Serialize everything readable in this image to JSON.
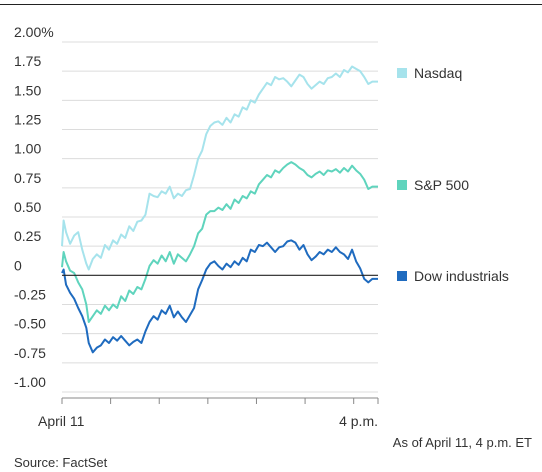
{
  "chart_data": {
    "type": "line",
    "title": "",
    "xlabel": "",
    "ylabel": "",
    "ylim": [
      -1.0,
      2.0
    ],
    "y_ticks": [
      2.0,
      1.75,
      1.5,
      1.25,
      1.0,
      0.75,
      0.5,
      0.25,
      0,
      -0.25,
      -0.5,
      -0.75,
      -1.0
    ],
    "y_tick_labels": [
      "2.00%",
      "1.75",
      "1.50",
      "1.25",
      "1.00",
      "0.75",
      "0.50",
      "0.25",
      "0",
      "-0.25",
      "-0.50",
      "-0.75",
      "-1.00"
    ],
    "x_range": [
      "9:30 a.m.",
      "4 p.m."
    ],
    "x_tick_labels": [
      "April 11",
      "4 p.m."
    ],
    "grid": true,
    "legend_placement": "right, at each line's end",
    "series": [
      {
        "name": "Nasdaq",
        "color": "#a6e3ec",
        "points": [
          [
            "9:30",
            0.25
          ],
          [
            "9:32",
            0.47
          ],
          [
            "9:35",
            0.37
          ],
          [
            "9:40",
            0.27
          ],
          [
            "9:45",
            0.34
          ],
          [
            "9:50",
            0.37
          ],
          [
            "9:55",
            0.22
          ],
          [
            "10:00",
            0.1
          ],
          [
            "10:03",
            0.05
          ],
          [
            "10:08",
            0.14
          ],
          [
            "10:13",
            0.18
          ],
          [
            "10:18",
            0.15
          ],
          [
            "10:23",
            0.26
          ],
          [
            "10:28",
            0.22
          ],
          [
            "10:33",
            0.3
          ],
          [
            "10:38",
            0.27
          ],
          [
            "10:43",
            0.35
          ],
          [
            "10:48",
            0.32
          ],
          [
            "10:53",
            0.42
          ],
          [
            "10:58",
            0.38
          ],
          [
            "11:03",
            0.46
          ],
          [
            "11:08",
            0.47
          ],
          [
            "11:13",
            0.52
          ],
          [
            "11:18",
            0.7
          ],
          [
            "11:23",
            0.68
          ],
          [
            "11:28",
            0.67
          ],
          [
            "11:33",
            0.72
          ],
          [
            "11:38",
            0.7
          ],
          [
            "11:43",
            0.76
          ],
          [
            "11:48",
            0.66
          ],
          [
            "11:53",
            0.7
          ],
          [
            "11:58",
            0.68
          ],
          [
            "12:03",
            0.73
          ],
          [
            "12:08",
            0.74
          ],
          [
            "12:13",
            0.86
          ],
          [
            "12:18",
            1.0
          ],
          [
            "12:23",
            1.07
          ],
          [
            "12:28",
            1.21
          ],
          [
            "12:33",
            1.28
          ],
          [
            "12:38",
            1.31
          ],
          [
            "12:43",
            1.32
          ],
          [
            "12:48",
            1.29
          ],
          [
            "12:53",
            1.35
          ],
          [
            "12:58",
            1.31
          ],
          [
            "13:03",
            1.38
          ],
          [
            "13:08",
            1.36
          ],
          [
            "13:13",
            1.44
          ],
          [
            "13:18",
            1.42
          ],
          [
            "13:23",
            1.5
          ],
          [
            "13:28",
            1.48
          ],
          [
            "13:33",
            1.55
          ],
          [
            "13:38",
            1.6
          ],
          [
            "13:43",
            1.65
          ],
          [
            "13:48",
            1.63
          ],
          [
            "13:53",
            1.7
          ],
          [
            "13:58",
            1.68
          ],
          [
            "14:03",
            1.69
          ],
          [
            "14:08",
            1.66
          ],
          [
            "14:13",
            1.62
          ],
          [
            "14:18",
            1.67
          ],
          [
            "14:23",
            1.72
          ],
          [
            "14:28",
            1.7
          ],
          [
            "14:33",
            1.64
          ],
          [
            "14:38",
            1.6
          ],
          [
            "14:43",
            1.63
          ],
          [
            "14:48",
            1.66
          ],
          [
            "14:53",
            1.64
          ],
          [
            "14:58",
            1.69
          ],
          [
            "15:03",
            1.7
          ],
          [
            "15:08",
            1.73
          ],
          [
            "15:13",
            1.7
          ],
          [
            "15:18",
            1.76
          ],
          [
            "15:23",
            1.74
          ],
          [
            "15:28",
            1.79
          ],
          [
            "15:33",
            1.77
          ],
          [
            "15:38",
            1.75
          ],
          [
            "15:43",
            1.7
          ],
          [
            "15:48",
            1.64
          ],
          [
            "15:53",
            1.66
          ],
          [
            "16:00",
            1.66
          ]
        ]
      },
      {
        "name": "S&P 500",
        "color": "#5fd4bd",
        "points": [
          [
            "9:30",
            0.07
          ],
          [
            "9:32",
            0.2
          ],
          [
            "9:35",
            0.12
          ],
          [
            "9:40",
            0.04
          ],
          [
            "9:45",
            0.02
          ],
          [
            "9:50",
            -0.06
          ],
          [
            "9:55",
            -0.12
          ],
          [
            "10:00",
            -0.25
          ],
          [
            "10:03",
            -0.4
          ],
          [
            "10:08",
            -0.35
          ],
          [
            "10:13",
            -0.3
          ],
          [
            "10:18",
            -0.33
          ],
          [
            "10:23",
            -0.26
          ],
          [
            "10:28",
            -0.3
          ],
          [
            "10:33",
            -0.25
          ],
          [
            "10:38",
            -0.28
          ],
          [
            "10:43",
            -0.18
          ],
          [
            "10:48",
            -0.22
          ],
          [
            "10:53",
            -0.13
          ],
          [
            "10:58",
            -0.16
          ],
          [
            "11:03",
            -0.1
          ],
          [
            "11:08",
            -0.12
          ],
          [
            "11:13",
            -0.03
          ],
          [
            "11:18",
            0.08
          ],
          [
            "11:23",
            0.13
          ],
          [
            "11:28",
            0.1
          ],
          [
            "11:33",
            0.17
          ],
          [
            "11:38",
            0.12
          ],
          [
            "11:43",
            0.2
          ],
          [
            "11:48",
            0.1
          ],
          [
            "11:53",
            0.18
          ],
          [
            "11:58",
            0.15
          ],
          [
            "12:03",
            0.12
          ],
          [
            "12:08",
            0.18
          ],
          [
            "12:13",
            0.25
          ],
          [
            "12:18",
            0.36
          ],
          [
            "12:23",
            0.4
          ],
          [
            "12:28",
            0.52
          ],
          [
            "12:33",
            0.55
          ],
          [
            "12:38",
            0.55
          ],
          [
            "12:43",
            0.58
          ],
          [
            "12:48",
            0.56
          ],
          [
            "12:53",
            0.61
          ],
          [
            "12:58",
            0.57
          ],
          [
            "13:03",
            0.65
          ],
          [
            "13:08",
            0.62
          ],
          [
            "13:13",
            0.68
          ],
          [
            "13:18",
            0.66
          ],
          [
            "13:23",
            0.72
          ],
          [
            "13:28",
            0.7
          ],
          [
            "13:33",
            0.78
          ],
          [
            "13:38",
            0.82
          ],
          [
            "13:43",
            0.86
          ],
          [
            "13:48",
            0.84
          ],
          [
            "13:53",
            0.9
          ],
          [
            "13:58",
            0.88
          ],
          [
            "14:03",
            0.92
          ],
          [
            "14:08",
            0.95
          ],
          [
            "14:13",
            0.97
          ],
          [
            "14:18",
            0.95
          ],
          [
            "14:23",
            0.92
          ],
          [
            "14:28",
            0.9
          ],
          [
            "14:33",
            0.86
          ],
          [
            "14:38",
            0.84
          ],
          [
            "14:43",
            0.87
          ],
          [
            "14:48",
            0.89
          ],
          [
            "14:53",
            0.86
          ],
          [
            "14:58",
            0.9
          ],
          [
            "15:03",
            0.89
          ],
          [
            "15:08",
            0.91
          ],
          [
            "15:13",
            0.88
          ],
          [
            "15:18",
            0.92
          ],
          [
            "15:23",
            0.89
          ],
          [
            "15:28",
            0.94
          ],
          [
            "15:33",
            0.9
          ],
          [
            "15:38",
            0.87
          ],
          [
            "15:43",
            0.82
          ],
          [
            "15:48",
            0.74
          ],
          [
            "15:53",
            0.76
          ],
          [
            "16:00",
            0.76
          ]
        ]
      },
      {
        "name": "Dow industrials",
        "color": "#1f6bbf",
        "points": [
          [
            "9:30",
            0.02
          ],
          [
            "9:32",
            0.05
          ],
          [
            "9:35",
            -0.08
          ],
          [
            "9:40",
            -0.15
          ],
          [
            "9:45",
            -0.2
          ],
          [
            "9:50",
            -0.28
          ],
          [
            "9:55",
            -0.35
          ],
          [
            "10:00",
            -0.45
          ],
          [
            "10:03",
            -0.58
          ],
          [
            "10:08",
            -0.66
          ],
          [
            "10:13",
            -0.62
          ],
          [
            "10:18",
            -0.6
          ],
          [
            "10:23",
            -0.55
          ],
          [
            "10:28",
            -0.58
          ],
          [
            "10:33",
            -0.53
          ],
          [
            "10:38",
            -0.56
          ],
          [
            "10:43",
            -0.52
          ],
          [
            "10:48",
            -0.56
          ],
          [
            "10:53",
            -0.6
          ],
          [
            "10:58",
            -0.57
          ],
          [
            "11:03",
            -0.55
          ],
          [
            "11:08",
            -0.58
          ],
          [
            "11:13",
            -0.48
          ],
          [
            "11:18",
            -0.4
          ],
          [
            "11:23",
            -0.35
          ],
          [
            "11:28",
            -0.38
          ],
          [
            "11:33",
            -0.3
          ],
          [
            "11:38",
            -0.33
          ],
          [
            "11:43",
            -0.26
          ],
          [
            "11:48",
            -0.36
          ],
          [
            "11:53",
            -0.31
          ],
          [
            "11:58",
            -0.36
          ],
          [
            "12:03",
            -0.4
          ],
          [
            "12:08",
            -0.34
          ],
          [
            "12:13",
            -0.28
          ],
          [
            "12:18",
            -0.12
          ],
          [
            "12:23",
            -0.04
          ],
          [
            "12:28",
            0.05
          ],
          [
            "12:33",
            0.1
          ],
          [
            "12:38",
            0.12
          ],
          [
            "12:43",
            0.08
          ],
          [
            "12:48",
            0.05
          ],
          [
            "12:53",
            0.1
          ],
          [
            "12:58",
            0.07
          ],
          [
            "13:03",
            0.12
          ],
          [
            "13:08",
            0.09
          ],
          [
            "13:13",
            0.15
          ],
          [
            "13:18",
            0.12
          ],
          [
            "13:23",
            0.22
          ],
          [
            "13:28",
            0.2
          ],
          [
            "13:33",
            0.26
          ],
          [
            "13:38",
            0.25
          ],
          [
            "13:43",
            0.28
          ],
          [
            "13:48",
            0.24
          ],
          [
            "13:53",
            0.2
          ],
          [
            "13:58",
            0.24
          ],
          [
            "14:03",
            0.25
          ],
          [
            "14:08",
            0.29
          ],
          [
            "14:13",
            0.3
          ],
          [
            "14:18",
            0.28
          ],
          [
            "14:23",
            0.22
          ],
          [
            "14:28",
            0.26
          ],
          [
            "14:33",
            0.18
          ],
          [
            "14:38",
            0.13
          ],
          [
            "14:43",
            0.16
          ],
          [
            "14:48",
            0.2
          ],
          [
            "14:53",
            0.18
          ],
          [
            "14:58",
            0.22
          ],
          [
            "15:03",
            0.2
          ],
          [
            "15:08",
            0.24
          ],
          [
            "15:13",
            0.2
          ],
          [
            "15:18",
            0.18
          ],
          [
            "15:23",
            0.14
          ],
          [
            "15:28",
            0.22
          ],
          [
            "15:33",
            0.12
          ],
          [
            "15:38",
            0.06
          ],
          [
            "15:43",
            -0.03
          ],
          [
            "15:48",
            -0.06
          ],
          [
            "15:53",
            -0.03
          ],
          [
            "16:00",
            -0.03
          ]
        ]
      }
    ]
  },
  "footer": {
    "as_of": "As of April 11, 4 p.m. ET",
    "source": "Source: FactSet"
  }
}
